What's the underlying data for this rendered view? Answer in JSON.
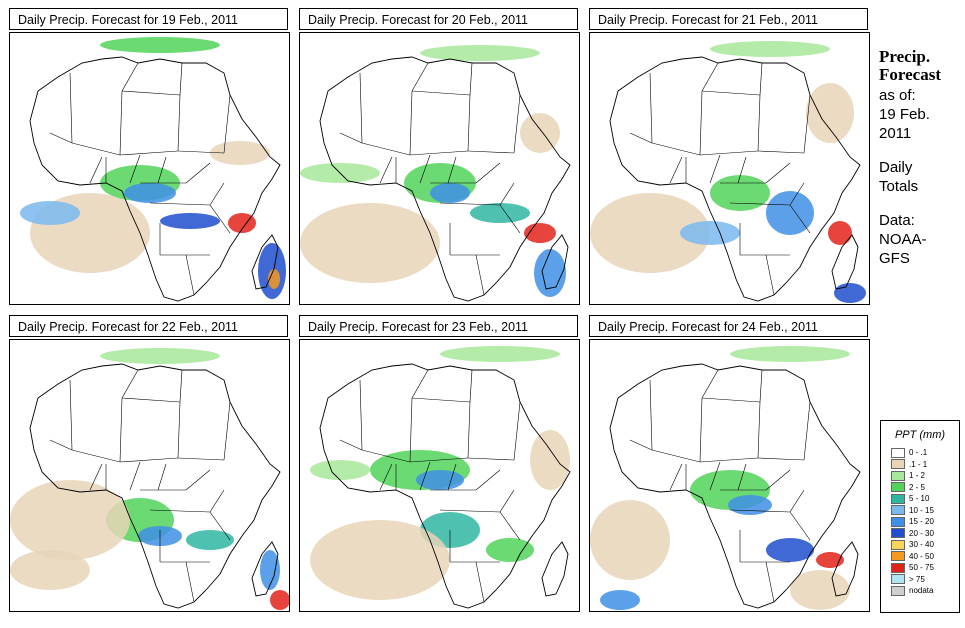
{
  "panels": [
    {
      "title": "Daily Precip. Forecast for  19 Feb., 2011"
    },
    {
      "title": "Daily Precip. Forecast for  20 Feb., 2011"
    },
    {
      "title": "Daily Precip. Forecast for  21 Feb., 2011"
    },
    {
      "title": "Daily Precip. Forecast for  22 Feb., 2011"
    },
    {
      "title": "Daily Precip. Forecast for  23 Feb., 2011"
    },
    {
      "title": "Daily Precip. Forecast for  24 Feb., 2011"
    }
  ],
  "sidebar": {
    "heading_line1": "Precip.",
    "heading_line2": "Forecast",
    "asof": "as of:",
    "date_line1": "19 Feb.",
    "date_line2": "2011",
    "totals_line1": "Daily",
    "totals_line2": "Totals",
    "data_line1": "Data:",
    "data_line2": "NOAA-",
    "data_line3": "GFS"
  },
  "legend": {
    "title": "PPT (mm)",
    "items": [
      {
        "label": "0 - .1",
        "color": "#ffffff"
      },
      {
        "label": ".1 - 1",
        "color": "#e8d5b9"
      },
      {
        "label": "1 - 2",
        "color": "#a8e89a"
      },
      {
        "label": "2 - 5",
        "color": "#52d45a"
      },
      {
        "label": "5 - 10",
        "color": "#2fb6a2"
      },
      {
        "label": "10 - 15",
        "color": "#7ab8ee"
      },
      {
        "label": "15 - 20",
        "color": "#3f8fe6"
      },
      {
        "label": "20 - 30",
        "color": "#1f4fcf"
      },
      {
        "label": "30 - 40",
        "color": "#f5d65a"
      },
      {
        "label": "40 - 50",
        "color": "#f59a1f"
      },
      {
        "label": "50 - 75",
        "color": "#e2231a"
      },
      {
        "label": "> 75",
        "color": "#b0e6f2"
      },
      {
        "label": "nodata",
        "color": "#cfcfcf"
      }
    ]
  }
}
